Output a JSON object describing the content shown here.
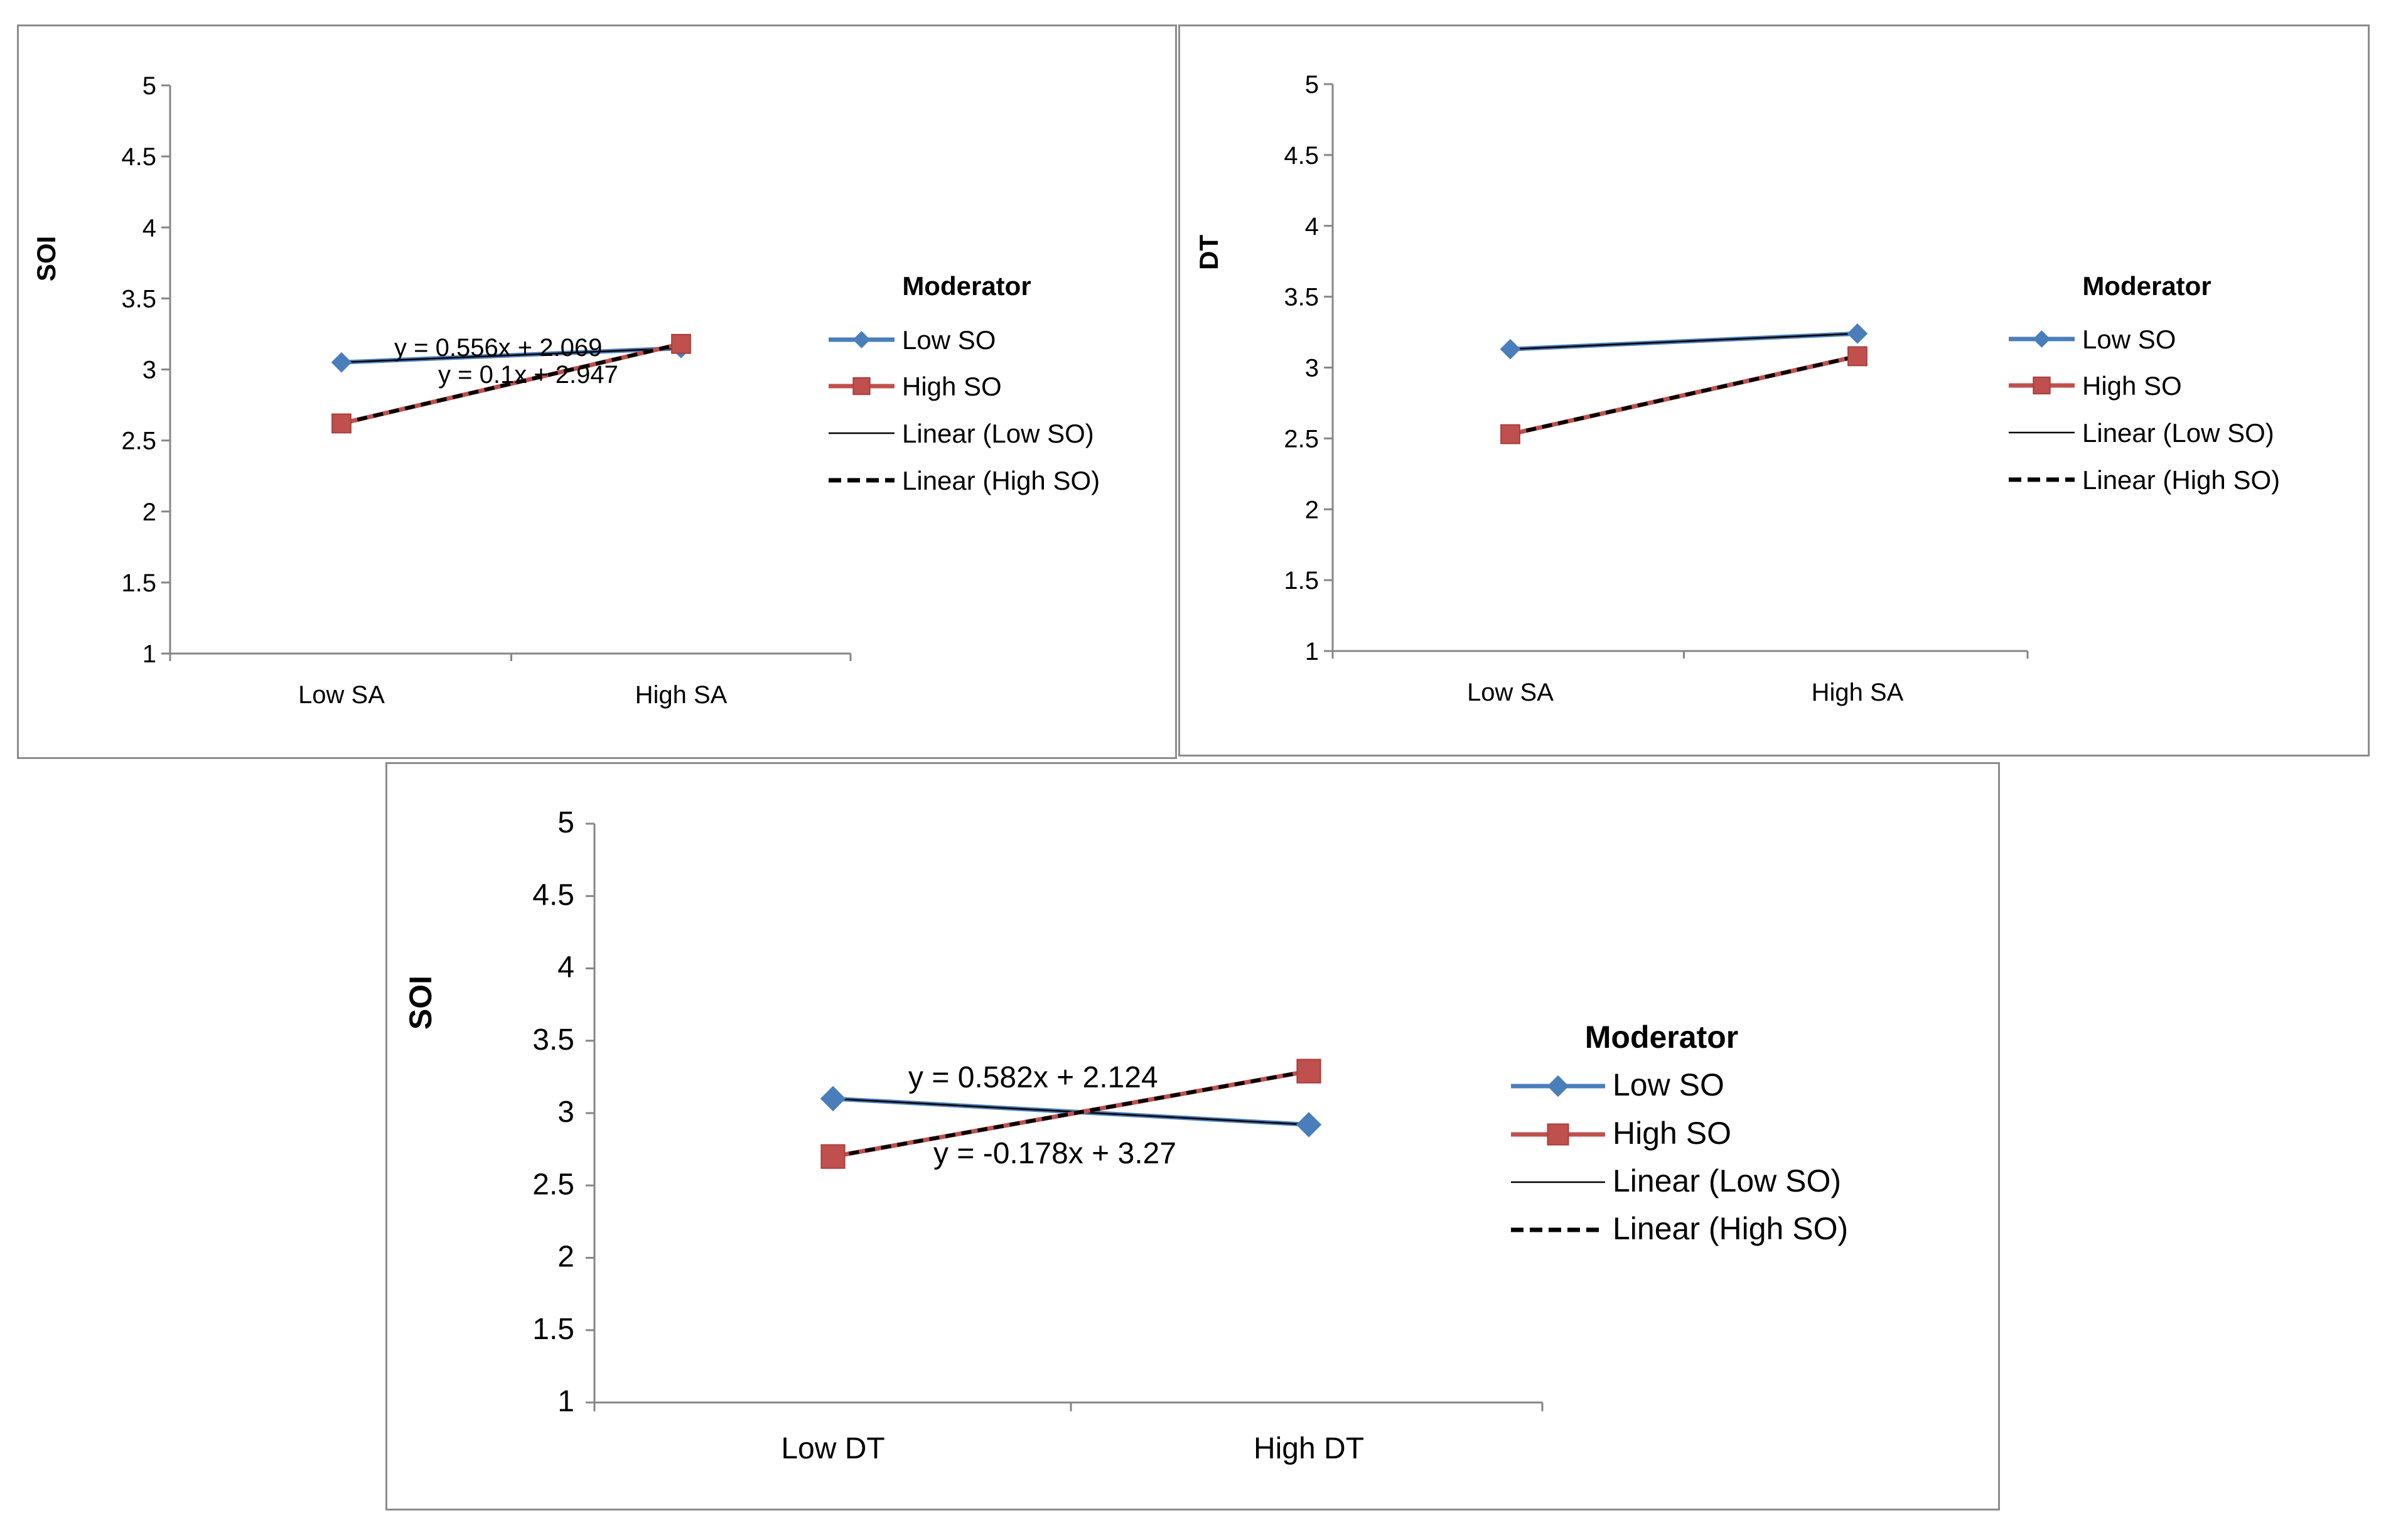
{
  "chart_data": [
    {
      "type": "line",
      "ylabel": "SOI",
      "xlabel": "",
      "categories": [
        "Low SA",
        "High SA"
      ],
      "ylim": [
        1,
        5
      ],
      "yticks": [
        "1",
        "1.5",
        "2",
        "2.5",
        "3",
        "3.5",
        "4",
        "4.5",
        "5"
      ],
      "legend_title": "Moderator",
      "legend_position": "right",
      "series": [
        {
          "name": "Low SO",
          "values": [
            3.05,
            3.15
          ],
          "color": "#4a7ebb",
          "marker": "diamond"
        },
        {
          "name": "High SO",
          "values": [
            2.62,
            3.18
          ],
          "color": "#c0504d",
          "marker": "square"
        }
      ],
      "trendlines": [
        {
          "name": "Linear (Low SO)",
          "style": "solid"
        },
        {
          "name": "Linear (High SO)",
          "style": "dashed"
        }
      ],
      "annotations": [
        "y = 0.556x + 2.069",
        "y = 0.1x + 2.947"
      ]
    },
    {
      "type": "line",
      "ylabel": "DT",
      "xlabel": "",
      "categories": [
        "Low SA",
        "High SA"
      ],
      "ylim": [
        1,
        5
      ],
      "yticks": [
        "1",
        "1.5",
        "2",
        "2.5",
        "3",
        "3.5",
        "4",
        "4.5",
        "5"
      ],
      "legend_title": "Moderator",
      "legend_position": "right",
      "series": [
        {
          "name": "Low SO",
          "values": [
            3.13,
            3.24
          ],
          "color": "#4a7ebb",
          "marker": "diamond"
        },
        {
          "name": "High SO",
          "values": [
            2.53,
            3.08
          ],
          "color": "#c0504d",
          "marker": "square"
        }
      ],
      "trendlines": [
        {
          "name": "Linear (Low SO)",
          "style": "solid"
        },
        {
          "name": "Linear (High SO)",
          "style": "dashed"
        }
      ],
      "annotations": []
    },
    {
      "type": "line",
      "ylabel": "SOI",
      "xlabel": "",
      "categories": [
        "Low DT",
        "High DT"
      ],
      "ylim": [
        1,
        5
      ],
      "yticks": [
        "1",
        "1.5",
        "2",
        "2.5",
        "3",
        "3.5",
        "4",
        "4.5",
        "5"
      ],
      "legend_title": "Moderator",
      "legend_position": "right",
      "series": [
        {
          "name": "Low SO",
          "values": [
            3.1,
            2.92
          ],
          "color": "#4a7ebb",
          "marker": "diamond"
        },
        {
          "name": "High SO",
          "values": [
            2.7,
            3.29
          ],
          "color": "#c0504d",
          "marker": "square"
        }
      ],
      "trendlines": [
        {
          "name": "Linear (Low SO)",
          "style": "solid"
        },
        {
          "name": "Linear (High SO)",
          "style": "dashed"
        }
      ],
      "annotations": [
        "y = 0.582x + 2.124",
        "y = -0.178x + 3.27"
      ]
    }
  ]
}
